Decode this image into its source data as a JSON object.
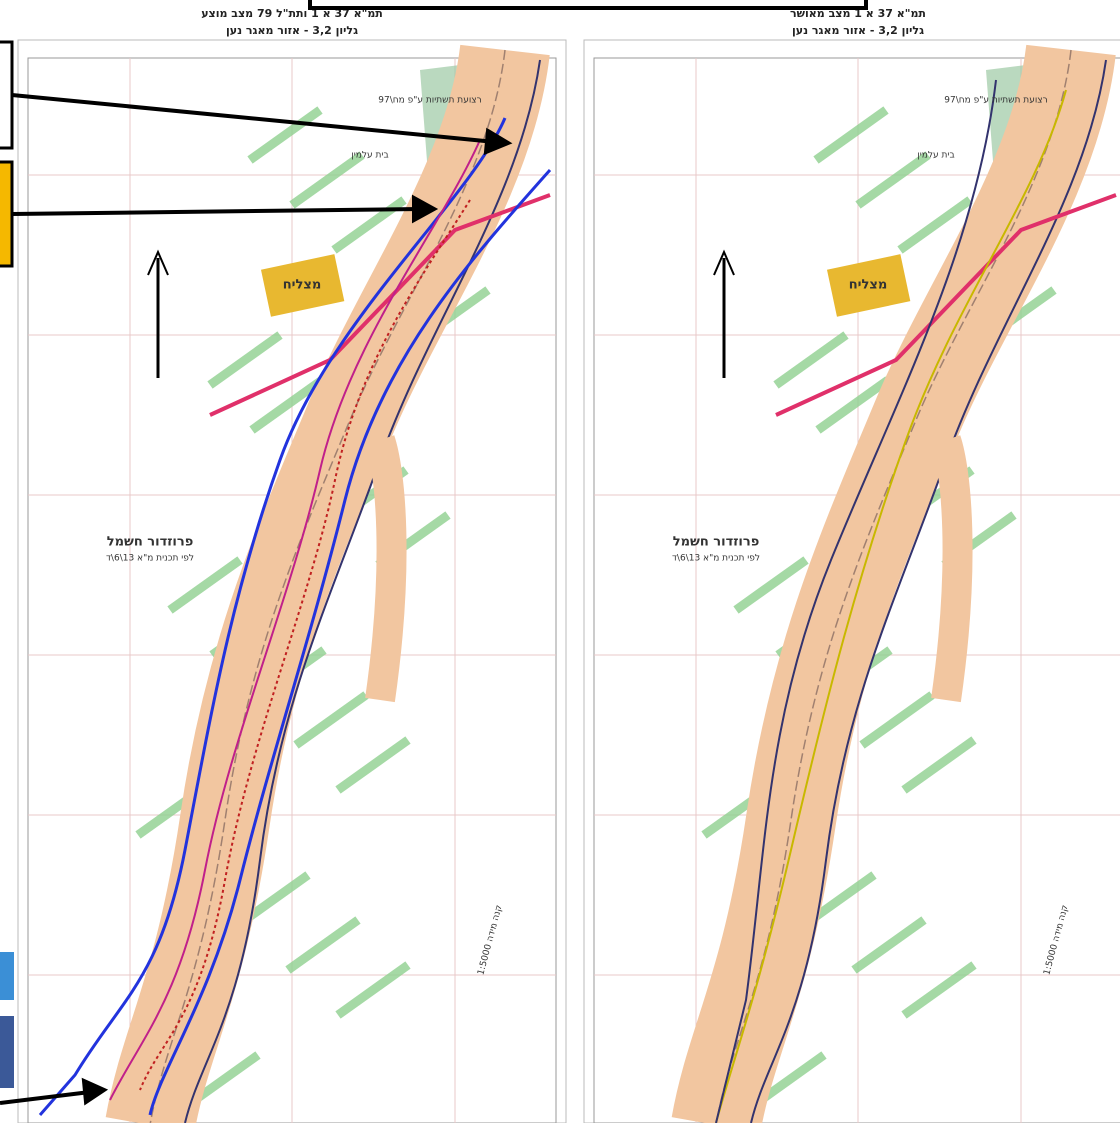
{
  "panels": [
    {
      "title": "תמ\"א 37 א 1 ותת\"ל 79 מצב מוצע",
      "subtitle": "גליון 3,2 - אזור מאגר נען",
      "labels": [
        "רצועת תשתיות ע\"פ מח\\97",
        "בית עלמין",
        "מצליח",
        "פרוזדור חשמל",
        "לפי תכנית מ\"א 13\\6\\ד",
        "קנה מידה 1:5000"
      ]
    },
    {
      "title": "תמ\"א 37 א 1 מצב מאושר",
      "subtitle": "גליון 3,2 - אזור מאגר נען",
      "labels": [
        "רצועת תשתיות ע\"פ מח\\97",
        "בית עלמין",
        "מצליח",
        "פרוזדור חשמל",
        "לפי תכנית מ\"א 13\\6\\ד",
        "קנה מידה 1:5000"
      ]
    }
  ]
}
